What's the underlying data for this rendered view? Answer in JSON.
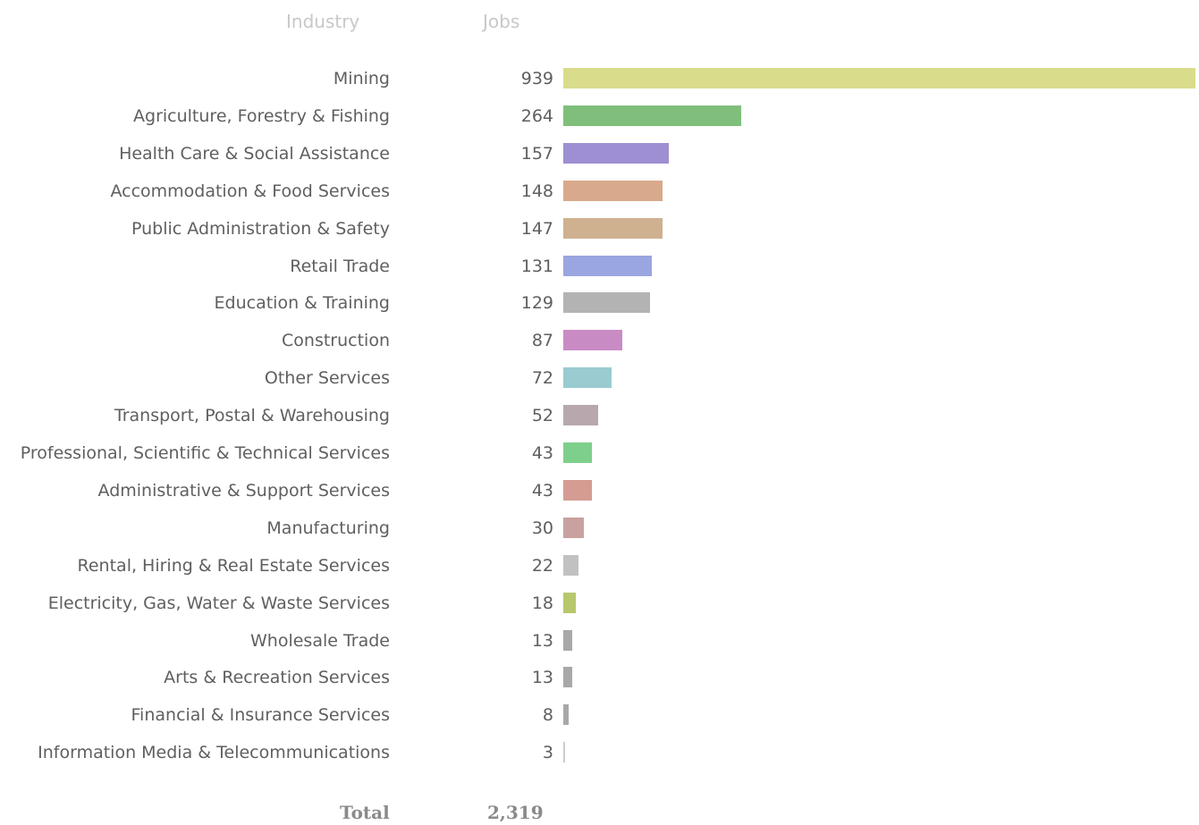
{
  "headers": {
    "industry": "Industry",
    "jobs": "Jobs"
  },
  "chart_data": {
    "type": "bar",
    "orientation": "horizontal",
    "categories": [
      "Mining",
      "Agriculture, Forestry & Fishing",
      "Health Care & Social Assistance",
      "Accommodation & Food Services",
      "Public Administration & Safety",
      "Retail Trade",
      "Education & Training",
      "Construction",
      "Other Services",
      "Transport, Postal & Warehousing",
      "Professional, Scientific & Technical Services",
      "Administrative & Support Services",
      "Manufacturing",
      "Rental, Hiring & Real Estate Services",
      "Electricity, Gas, Water & Waste Services",
      "Wholesale Trade",
      "Arts & Recreation Services",
      "Financial & Insurance Services",
      "Information Media & Telecommunications"
    ],
    "values": [
      939,
      264,
      157,
      148,
      147,
      131,
      129,
      87,
      72,
      52,
      43,
      43,
      30,
      22,
      18,
      13,
      13,
      8,
      3
    ],
    "value_labels": [
      "939",
      "264",
      "157",
      "148",
      "147",
      "131",
      "129",
      "87",
      "72",
      "52",
      "43",
      "43",
      "30",
      "22",
      "18",
      "13",
      "13",
      "8",
      "3"
    ],
    "colors": [
      "#d9dc8a",
      "#7fbf7b",
      "#9d8fd1",
      "#d9a98c",
      "#cfb08f",
      "#9aa6e0",
      "#b3b3b3",
      "#c98bc4",
      "#99cbd1",
      "#b8a8ad",
      "#7fcf8c",
      "#d49c92",
      "#c9a19e",
      "#c1c1c1",
      "#b7c76b",
      "#a8a8a8",
      "#a8a8a8",
      "#a8a8a8",
      "#cccccc"
    ],
    "xlim": [
      0,
      939
    ],
    "grid": false,
    "legend": "none",
    "total_label": "Total",
    "total_value": "2,319"
  }
}
